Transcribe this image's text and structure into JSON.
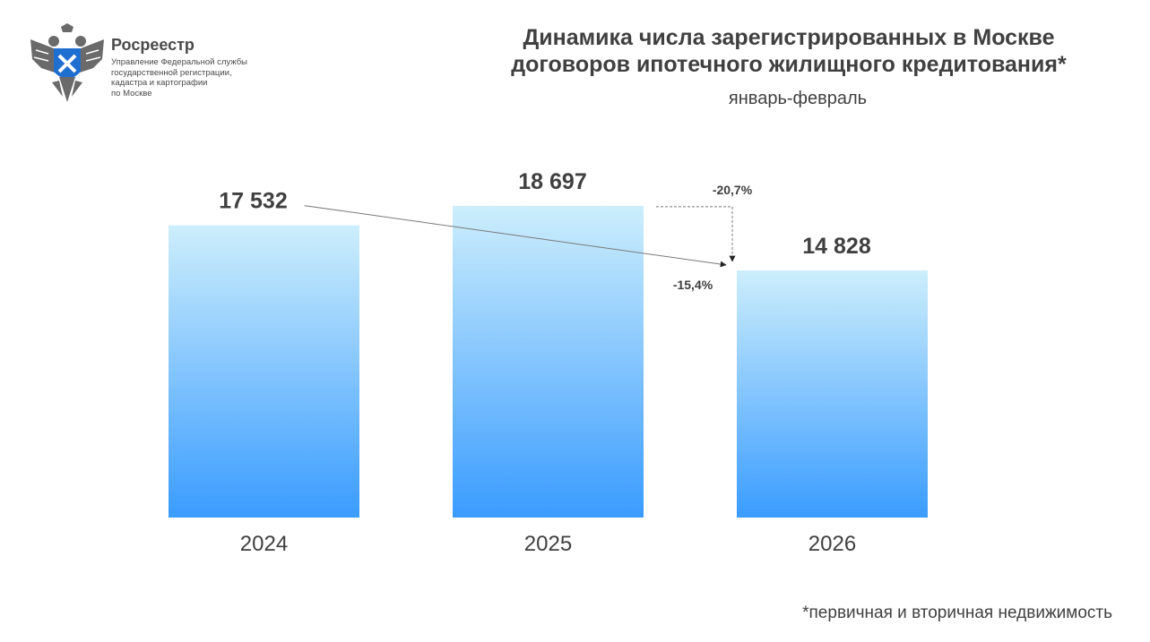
{
  "header": {
    "org_name": "Росреестр",
    "org_subtitle": "Управление Федеральной службы\nгосударственной регистрации,\nкадастра и картографии\nпо Москве",
    "logo_icon": "double-headed-eagle-emblem-icon"
  },
  "chart_data": {
    "type": "bar",
    "title_lines": [
      "Динамика числа зарегистрированных в Москве",
      "договоров ипотечного жилищного кредитования*"
    ],
    "subtitle": "январь-февраль",
    "categories": [
      "2024",
      "2025",
      "2026"
    ],
    "values": [
      17532,
      18697,
      14828
    ],
    "value_labels": [
      "17 532",
      "18 697",
      "14 828"
    ],
    "ylim": [
      0,
      21000
    ],
    "annotations": [
      {
        "from": "2024",
        "to": "2026",
        "label": "-15,4%"
      },
      {
        "from": "2025",
        "to": "2026",
        "label": "-20,7%"
      }
    ],
    "colors": {
      "bar_top": "#cdeefc",
      "bar_bottom": "#3a9cff",
      "text": "#404040",
      "arrow": "#7a7a7a"
    },
    "footnote": "*первичная и вторичная недвижимость"
  }
}
